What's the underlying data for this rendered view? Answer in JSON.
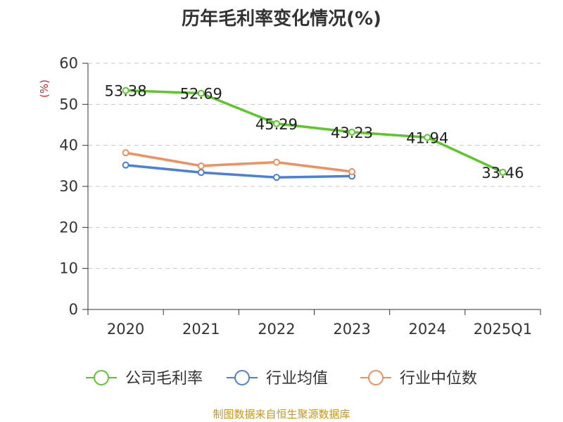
{
  "chart_data": {
    "type": "line",
    "title": "历年毛利率变化情况(%)",
    "ylabel": "(%)",
    "xlabel": "",
    "categories": [
      "2020",
      "2021",
      "2022",
      "2023",
      "2024",
      "2025Q1"
    ],
    "ylim": [
      0,
      60
    ],
    "yticks": [
      0,
      10,
      20,
      30,
      40,
      50,
      60
    ],
    "grid": true,
    "legend_position": "bottom",
    "series": [
      {
        "name": "公司毛利率",
        "color": "#5cc72b",
        "values": [
          53.38,
          52.69,
          45.29,
          43.23,
          41.94,
          33.46
        ],
        "labels": [
          "53.38",
          "52.69",
          "45.29",
          "43.23",
          "41.94",
          "33.46"
        ],
        "show_labels": true
      },
      {
        "name": "行业均值",
        "color": "#4a7fdc",
        "values": [
          35.2,
          33.4,
          32.2,
          32.5,
          null,
          null
        ],
        "show_labels": false
      },
      {
        "name": "行业中位数",
        "color": "#f28f5c",
        "values": [
          38.2,
          35.0,
          35.9,
          33.6,
          null,
          null
        ],
        "show_labels": false
      }
    ]
  },
  "footer": {
    "source": "制图数据来自恒生聚源数据库"
  }
}
